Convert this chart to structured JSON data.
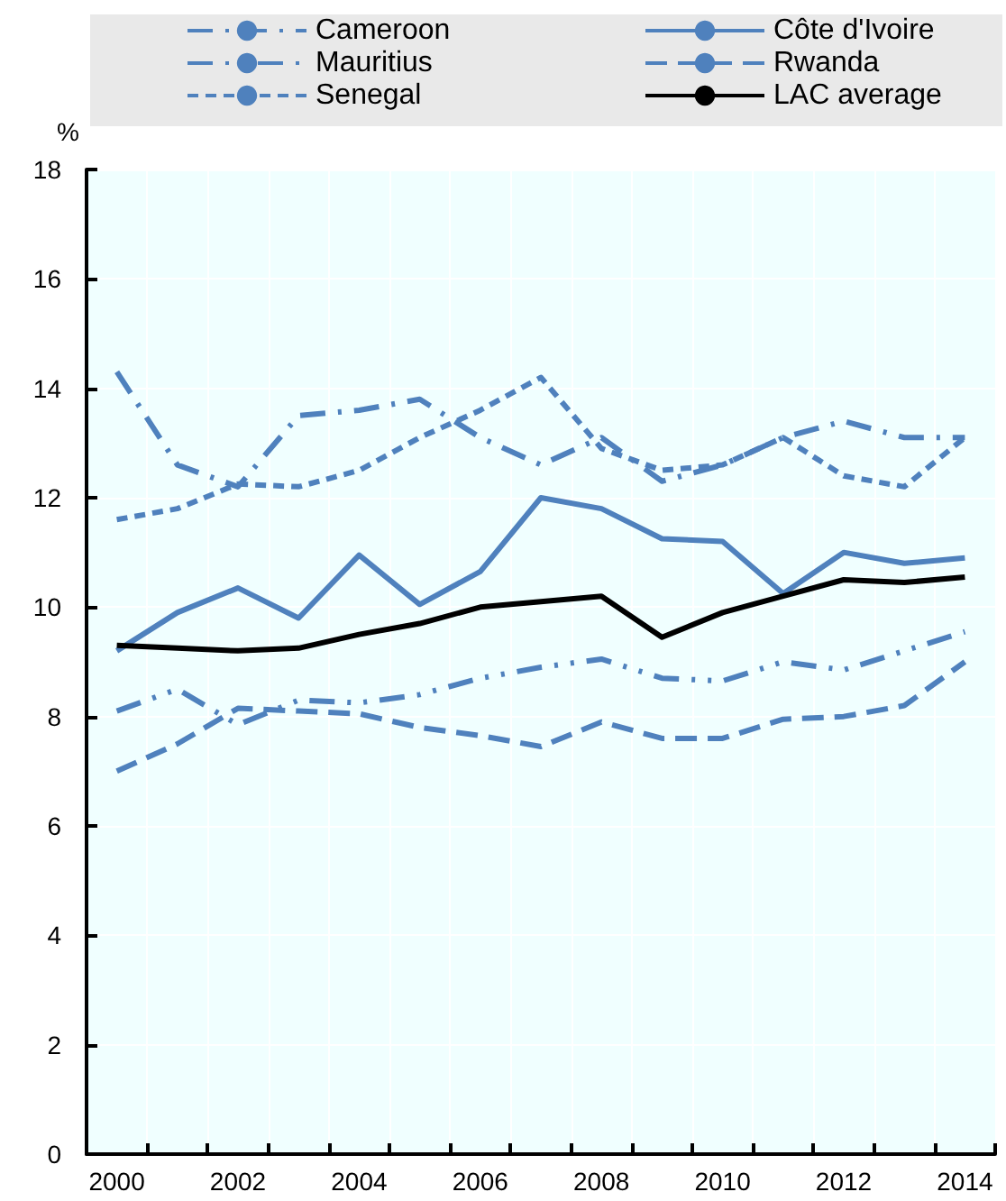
{
  "chart_data": {
    "type": "line",
    "ylabel": "%",
    "categories": [
      "2000",
      null,
      "2002",
      null,
      "2004",
      null,
      "2006",
      null,
      "2008",
      null,
      "2010",
      null,
      "2012",
      null,
      "2014"
    ],
    "ylim": [
      0,
      18
    ],
    "yticks": [
      0,
      2,
      4,
      6,
      8,
      10,
      12,
      14,
      16,
      18
    ],
    "grid": true,
    "legend": "top",
    "marker": "none",
    "series": [
      {
        "name": "Cameroon",
        "color": "#4f81bd",
        "line_style": "dashdot",
        "values": [
          14.3,
          12.6,
          12.2,
          13.5,
          13.6,
          13.8,
          13.1,
          12.6,
          13.1,
          12.3,
          12.6,
          13.1,
          13.4,
          13.1,
          13.1
        ]
      },
      {
        "name": "Côte d'Ivoire",
        "color": "#4f81bd",
        "line_style": "solid",
        "values": [
          9.2,
          9.9,
          10.35,
          9.8,
          10.95,
          10.05,
          10.65,
          12.0,
          11.8,
          11.25,
          11.2,
          10.25,
          11.0,
          10.8,
          10.9
        ]
      },
      {
        "name": "Mauritius",
        "color": "#4f81bd",
        "line_style": "dashdotdot",
        "values": [
          8.1,
          8.5,
          7.85,
          8.3,
          8.25,
          8.4,
          8.7,
          8.9,
          9.05,
          8.7,
          8.65,
          9.0,
          8.85,
          9.2,
          9.55
        ]
      },
      {
        "name": "Rwanda",
        "color": "#4f81bd",
        "line_style": "dashed",
        "values": [
          7.0,
          7.5,
          8.15,
          8.1,
          8.05,
          7.8,
          7.65,
          7.45,
          7.9,
          7.6,
          7.6,
          7.95,
          8.0,
          8.2,
          9.0
        ]
      },
      {
        "name": "Senegal",
        "color": "#4f81bd",
        "line_style": "dotted",
        "values": [
          11.6,
          11.8,
          12.25,
          12.2,
          12.5,
          13.1,
          13.6,
          14.2,
          12.9,
          12.5,
          12.6,
          13.1,
          12.4,
          12.2,
          13.1
        ]
      },
      {
        "name": "LAC average",
        "color": "#000000",
        "line_style": "solid",
        "values": [
          9.3,
          9.25,
          9.2,
          9.25,
          9.5,
          9.7,
          10.0,
          10.1,
          10.2,
          9.45,
          9.9,
          10.2,
          10.5,
          10.45,
          10.55
        ]
      }
    ]
  }
}
